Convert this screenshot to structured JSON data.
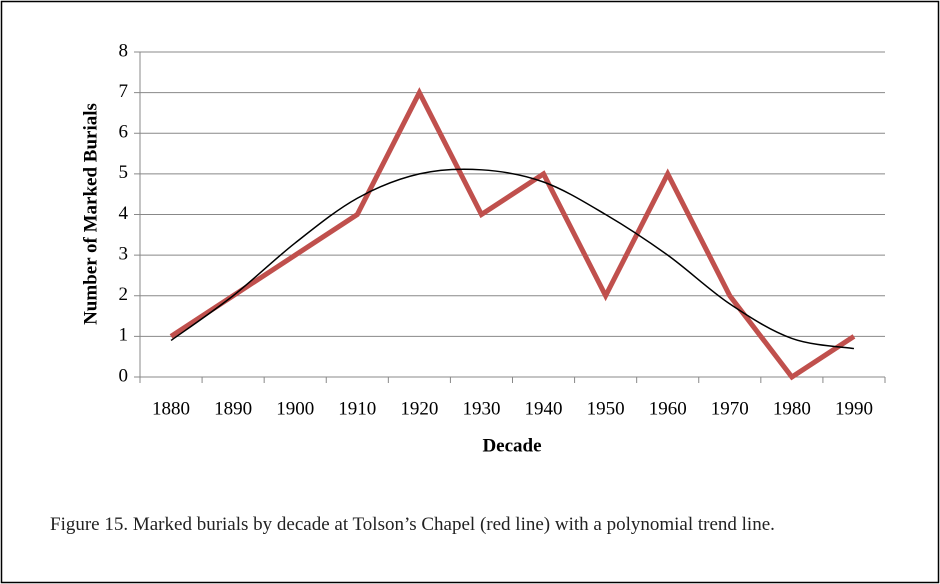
{
  "chart_data": {
    "type": "line",
    "xlabel": "Decade",
    "ylabel": "Number of Marked Burials",
    "categories": [
      "1880",
      "1890",
      "1900",
      "1910",
      "1920",
      "1930",
      "1940",
      "1950",
      "1960",
      "1970",
      "1980",
      "1990"
    ],
    "series": [
      {
        "color": "#c0504d",
        "values": [
          1,
          2,
          3,
          4,
          7,
          4,
          5,
          2,
          5,
          2,
          0,
          1
        ]
      },
      {
        "color": "#000000",
        "trend": true,
        "values": [
          0.9,
          2.0,
          3.3,
          4.4,
          5.0,
          5.1,
          4.8,
          4.0,
          3.0,
          1.8,
          0.95,
          0.7
        ]
      }
    ],
    "ylim": [
      0,
      8
    ],
    "yticks": [
      0,
      1,
      2,
      3,
      4,
      5,
      6,
      7,
      8
    ],
    "grid": true
  },
  "caption": "Figure 15. Marked burials by decade at Tolson’s Chapel (red line) with a polynomial trend line."
}
